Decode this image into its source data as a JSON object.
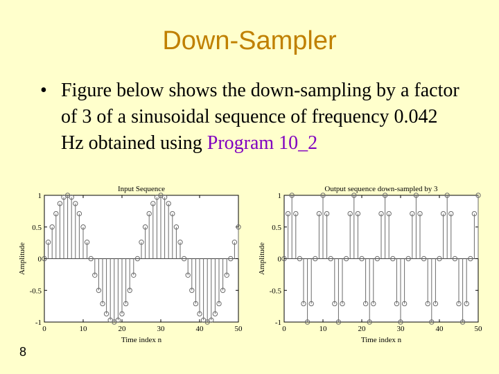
{
  "slide": {
    "title": "Down-Sampler",
    "bullet": "•",
    "text_before": "Figure below shows the down-sampling by a factor of 3 of a sinusoidal sequence of frequency 0.042 Hz obtained using ",
    "link_text": "Program 10_2",
    "slide_number": "8"
  },
  "chart_data": [
    {
      "type": "stem",
      "title": "Input Sequence",
      "xlabel": "Time index n",
      "ylabel": "Amplitude",
      "xlim": [
        0,
        50
      ],
      "ylim": [
        -1,
        1
      ],
      "xticks": [
        "0",
        "10",
        "20",
        "30",
        "40",
        "50"
      ],
      "yticks": [
        "-1",
        "-0.5",
        "0",
        "0.5",
        "1"
      ],
      "x": [
        0,
        1,
        2,
        3,
        4,
        5,
        6,
        7,
        8,
        9,
        10,
        11,
        12,
        13,
        14,
        15,
        16,
        17,
        18,
        19,
        20,
        21,
        22,
        23,
        24,
        25,
        26,
        27,
        28,
        29,
        30,
        31,
        32,
        33,
        34,
        35,
        36,
        37,
        38,
        39,
        40,
        41,
        42,
        43,
        44,
        45,
        46,
        47,
        48,
        49,
        50
      ],
      "values": [
        0.0,
        0.26,
        0.5,
        0.71,
        0.87,
        0.97,
        1.0,
        0.97,
        0.87,
        0.71,
        0.5,
        0.26,
        0.0,
        -0.26,
        -0.5,
        -0.71,
        -0.87,
        -0.97,
        -1.0,
        -0.97,
        -0.87,
        -0.71,
        -0.5,
        -0.26,
        0.0,
        0.26,
        0.5,
        0.71,
        0.87,
        0.97,
        1.0,
        0.97,
        0.87,
        0.71,
        0.5,
        0.26,
        0.0,
        -0.26,
        -0.5,
        -0.71,
        -0.87,
        -0.97,
        -1.0,
        -0.97,
        -0.87,
        -0.71,
        -0.5,
        -0.26,
        0.0,
        0.26,
        0.5
      ]
    },
    {
      "type": "stem",
      "title": "Output sequence down-sampled by 3",
      "xlabel": "Time index n",
      "ylabel": "Amplitude",
      "xlim": [
        0,
        50
      ],
      "ylim": [
        -1,
        1
      ],
      "xticks": [
        "0",
        "10",
        "20",
        "30",
        "40",
        "50"
      ],
      "yticks": [
        "-1",
        "-0.5",
        "0",
        "0.5",
        "1"
      ],
      "x": [
        0,
        1,
        2,
        3,
        4,
        5,
        6,
        7,
        8,
        9,
        10,
        11,
        12,
        13,
        14,
        15,
        16,
        17,
        18,
        19,
        20,
        21,
        22,
        23,
        24,
        25,
        26,
        27,
        28,
        29,
        30,
        31,
        32,
        33,
        34,
        35,
        36,
        37,
        38,
        39,
        40,
        41,
        42,
        43,
        44,
        45,
        46,
        47,
        48,
        49,
        50
      ],
      "values": [
        0.0,
        0.71,
        1.0,
        0.71,
        0.0,
        -0.71,
        -1.0,
        -0.71,
        0.0,
        0.71,
        1.0,
        0.71,
        0.0,
        -0.71,
        -1.0,
        -0.71,
        0.0,
        0.71,
        1.0,
        0.71,
        0.0,
        -0.71,
        -1.0,
        -0.71,
        0.0,
        0.71,
        1.0,
        0.71,
        0.0,
        -0.71,
        -1.0,
        -0.71,
        0.0,
        0.71,
        1.0,
        0.71,
        0.0,
        -0.71,
        -1.0,
        -0.71,
        0.0,
        0.71,
        1.0,
        0.71,
        0.0,
        -0.71,
        -1.0,
        -0.71,
        0.0,
        0.71,
        1.0
      ]
    }
  ]
}
